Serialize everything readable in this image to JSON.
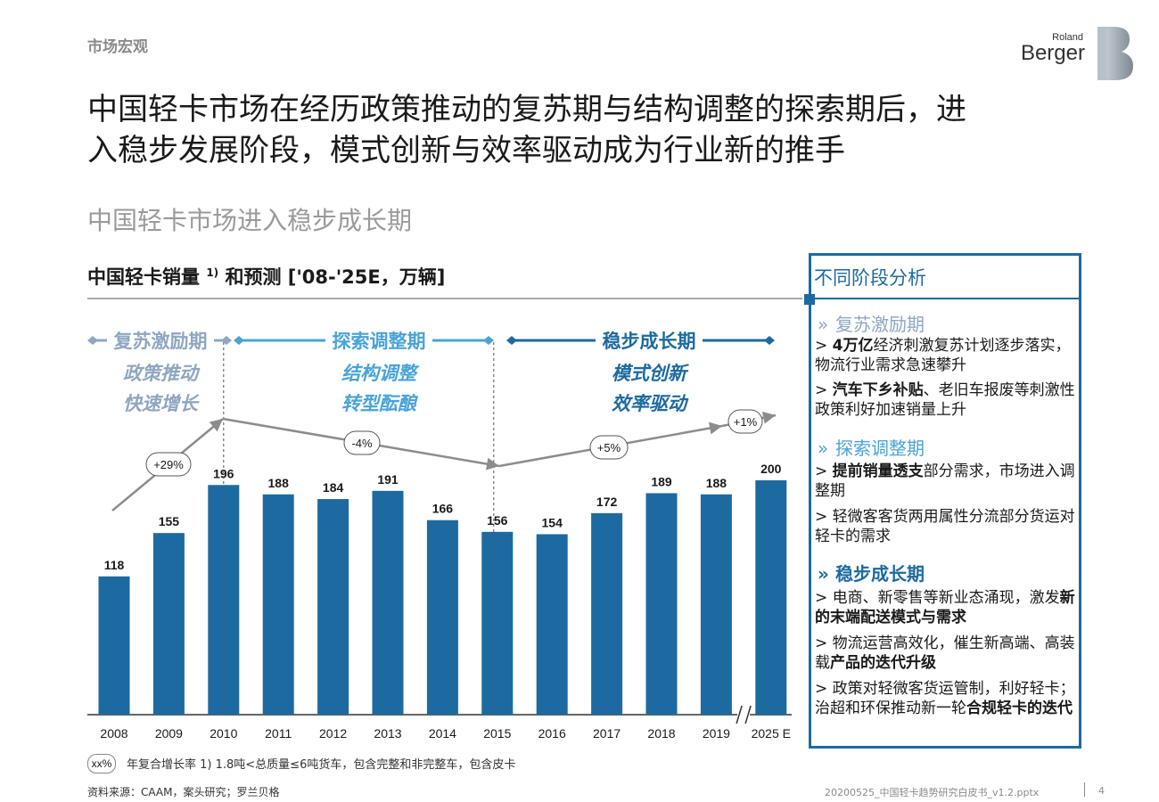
{
  "header": {
    "section": "市场宏观",
    "brand_line1": "Roland",
    "brand_line2": "Berger"
  },
  "title_line1": "中国轻卡市场在经历政策推动的复苏期与结构调整的探索期后，进",
  "title_line2": "入稳步发展阶段，模式创新与效率驱动成为行业新的推手",
  "subtitle": "中国轻卡市场进入稳步成长期",
  "chart_title": "中国轻卡销量",
  "chart_title_sup": "1)",
  "chart_title_rest": "和预测 ['08-'25E，万辆]",
  "phases": [
    {
      "name": "复苏激励期",
      "line1": "政策推动",
      "line2": "快速增长",
      "color": "#8fa6c0"
    },
    {
      "name": "探索调整期",
      "line1": "结构调整",
      "line2": "转型酝酿",
      "color": "#4aa3d8"
    },
    {
      "name": "稳步成长期",
      "line1": "模式创新",
      "line2": "效率驱动",
      "color": "#1d6aa0"
    }
  ],
  "cagr": [
    "+29%",
    "-4%",
    "+5%",
    "+1%"
  ],
  "chart_data": {
    "type": "bar",
    "categories": [
      "2008",
      "2009",
      "2010",
      "2011",
      "2012",
      "2013",
      "2014",
      "2015",
      "2016",
      "2017",
      "2018",
      "2019",
      "2025 E"
    ],
    "values": [
      118,
      155,
      196,
      188,
      184,
      191,
      166,
      156,
      154,
      172,
      189,
      188,
      200
    ],
    "title": "中国轻卡销量 1) 和预测 ['08-'25E，万辆]",
    "ylabel": "万辆",
    "ylim": [
      0,
      200
    ],
    "bar_color": "#1d6aa0",
    "axis_break_after": "2019"
  },
  "legend": {
    "box": "xx%",
    "text": "年复合增长率   1) 1.8吨<总质量≤6吨货车，包含完整和非完整车，包含皮卡"
  },
  "source": "资料来源：CAAM，案头研究；罗兰贝格",
  "footer": {
    "file": "20200525_中国轻卡趋势研究白皮书_v1.2.pptx",
    "page": "4"
  },
  "panel": {
    "title": "不同阶段分析",
    "sections": [
      {
        "heading": "复苏激励期",
        "color": "#8fa6c0",
        "bullets": [
          {
            "bold": "4万亿",
            "text": "经济刺激复苏计划逐步落实，物流行业需求急速攀升"
          },
          {
            "bold": "汽车下乡补贴",
            "text": "、老旧车报废等刺激性政策利好加速销量上升"
          }
        ]
      },
      {
        "heading": "探索调整期",
        "color": "#4aa3d8",
        "bullets": [
          {
            "bold": "提前销量透支",
            "text": "部分需求，市场进入调整期"
          },
          {
            "bold": "",
            "text": "轻微客客货两用属性分流部分货运对轻卡的需求"
          }
        ]
      },
      {
        "heading": "稳步成长期",
        "color": "#1d6aa0",
        "bullets": [
          {
            "pre": "电商、新零售等新业态涌现，激发",
            "bold": "新的末端配送模式与需求",
            "post": ""
          },
          {
            "pre": "物流运营高效化，催生新高端、高装载",
            "bold": "产品的迭代升级",
            "post": ""
          },
          {
            "pre": "政策对轻微客货运管制，利好轻卡；治超和环保推动新一轮",
            "bold": "合规轻卡的迭代",
            "post": ""
          }
        ]
      }
    ]
  }
}
